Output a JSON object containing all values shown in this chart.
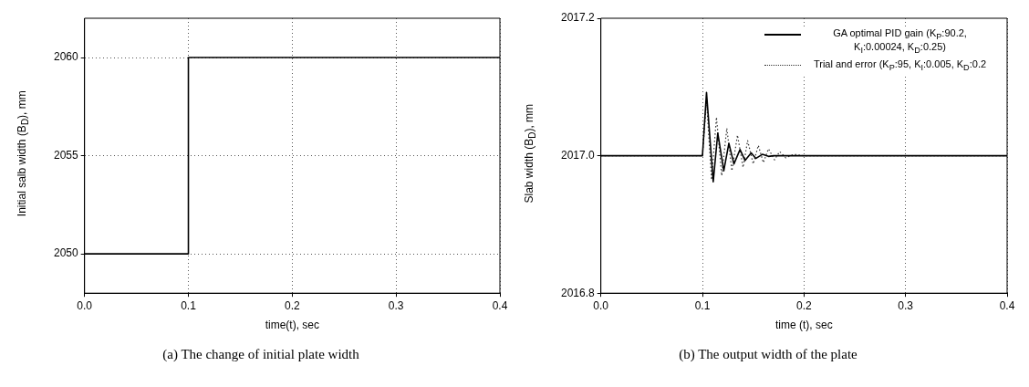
{
  "chart_data": [
    {
      "type": "step",
      "title": "(a) The change of initial plate width",
      "xlabel": "time(t), sec",
      "ylabel": "Initial salb width (B$_{D}$), mm",
      "x": [
        0,
        0.1,
        0.4
      ],
      "series": [
        {
          "color": "#000000",
          "values": [
            2050,
            2060,
            2060
          ]
        }
      ],
      "xlim": [
        0,
        0.4
      ],
      "xticks": [
        {
          "value": 0,
          "label": "0.0"
        },
        0.1,
        0.2,
        0.3,
        0.4
      ],
      "ylim": [
        2048,
        2062
      ],
      "yticks": [
        2050,
        2055,
        2060
      ],
      "grid": true,
      "legend": false,
      "line_style": "solid"
    },
    {
      "type": "line",
      "title": "(b) The output width of the plate",
      "xlabel": "time (t), sec",
      "ylabel": "Slab width (B$_{D}$), mm",
      "series": [
        {
          "name": "GA optimal PID gain (K$_{P}$:90.2, K$_{I}$:0.00024, K$_{D}$:0.25)",
          "color": "#000000",
          "line_style": "solid",
          "x": [
            0,
            0.1,
            0.104,
            0.1106,
            0.1151,
            0.121,
            0.126,
            0.131,
            0.137,
            0.142,
            0.148,
            0.1525,
            0.159,
            0.165,
            0.17,
            0.4
          ],
          "values": [
            2017,
            2017,
            2017.092,
            2016.962,
            2017.033,
            2016.978,
            2017.018,
            2016.988,
            2017.009,
            2016.993,
            2017.004,
            2016.996,
            2017.002,
            2016.999,
            2017,
            2017
          ]
        },
        {
          "name": "Trial and error (K$_{P}$:95, K$_{I}$:0.005, K$_{D}$:0.2",
          "color": "#333333",
          "line_style": "dotted",
          "x": [
            0,
            0.1,
            0.104,
            0.109,
            0.1138,
            0.119,
            0.124,
            0.129,
            0.1345,
            0.14,
            0.1445,
            0.15,
            0.155,
            0.16,
            0.165,
            0.171,
            0.176,
            0.182,
            0.19,
            0.2,
            0.4
          ],
          "values": [
            2017,
            2017,
            2017.08,
            2016.965,
            2017.056,
            2016.971,
            2017.04,
            2016.978,
            2017.03,
            2016.983,
            2017.022,
            2016.988,
            2017.015,
            2016.99,
            2017.01,
            2016.994,
            2017.006,
            2016.997,
            2017.002,
            2017,
            2017
          ]
        }
      ],
      "xlim": [
        0,
        0.4
      ],
      "xticks": [
        {
          "value": 0,
          "label": "0.0"
        },
        0.1,
        0.2,
        0.3,
        0.4
      ],
      "ylim": [
        2016.8,
        2017.2
      ],
      "yticks": [
        2016.8,
        {
          "value": 2017,
          "label": "2017.0"
        },
        2017.2
      ],
      "grid": "x",
      "legend": "top right"
    }
  ]
}
